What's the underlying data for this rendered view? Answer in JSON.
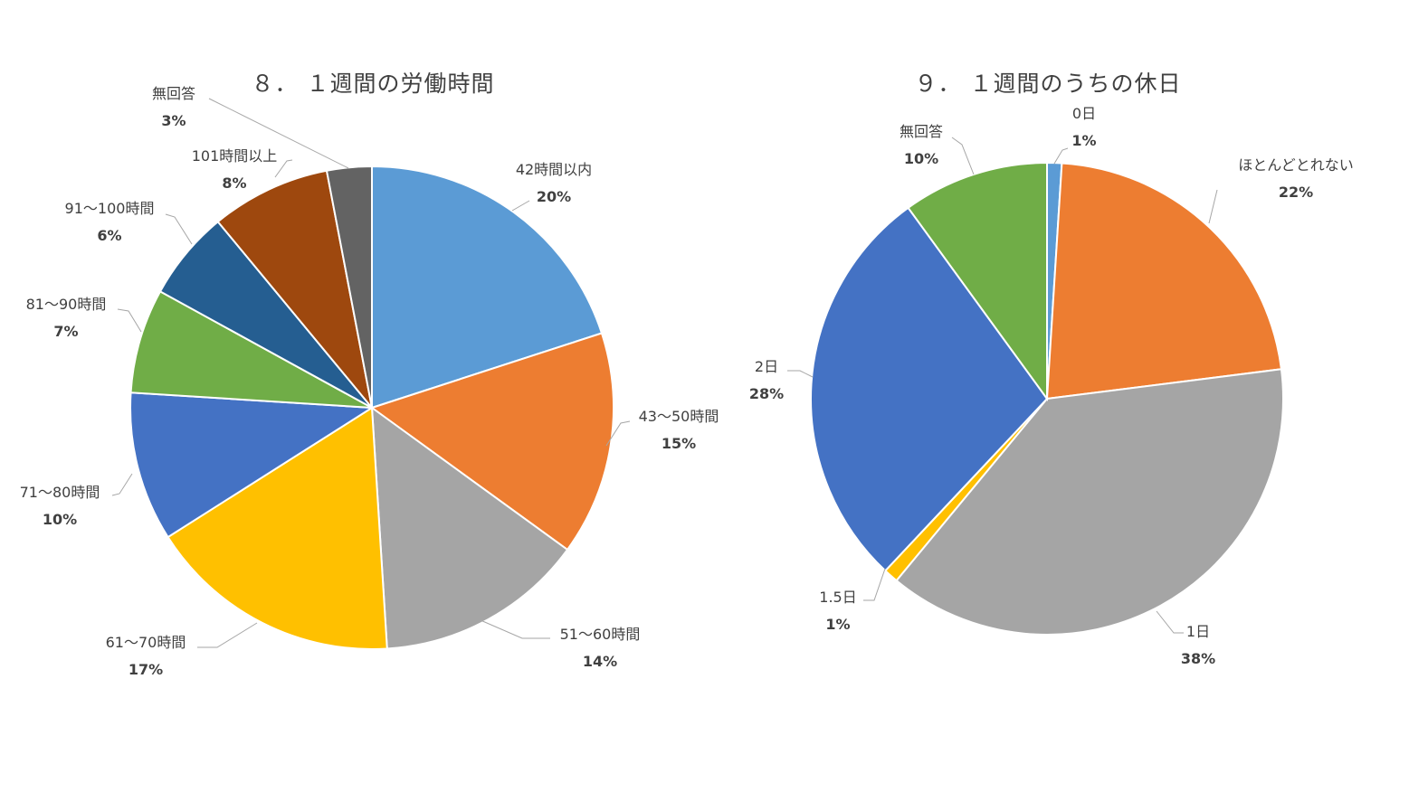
{
  "chart_data": [
    {
      "type": "pie",
      "title": "８． １週間の労働時間",
      "categories": [
        "42時間以内",
        "43〜50時間",
        "51〜60時間",
        "61〜70時間",
        "71〜80時間",
        "81〜90時間",
        "91〜100時間",
        "101時間以上",
        "無回答"
      ],
      "values": [
        20,
        15,
        14,
        17,
        10,
        7,
        6,
        8,
        3
      ],
      "value_labels": [
        "20%",
        "15%",
        "14%",
        "17%",
        "10%",
        "7%",
        "6%",
        "8%",
        "3%"
      ],
      "colors": [
        "#5b9bd5",
        "#ed7d31",
        "#a5a5a5",
        "#ffc000",
        "#4472c4",
        "#70ad47",
        "#255e91",
        "#9e480e",
        "#636363"
      ],
      "start": "12 o'clock, clockwise"
    },
    {
      "type": "pie",
      "title": "９． １週間のうちの休日",
      "categories": [
        "0日",
        "ほとんどとれない",
        "1日",
        "1.5日",
        "2日",
        "無回答"
      ],
      "values": [
        1,
        22,
        38,
        1,
        28,
        10
      ],
      "value_labels": [
        "1%",
        "22%",
        "38%",
        "1%",
        "28%",
        "10%"
      ],
      "colors": [
        "#5b9bd5",
        "#ed7d31",
        "#a5a5a5",
        "#ffc000",
        "#4472c4",
        "#70ad47"
      ],
      "start": "12 o'clock, clockwise"
    }
  ]
}
